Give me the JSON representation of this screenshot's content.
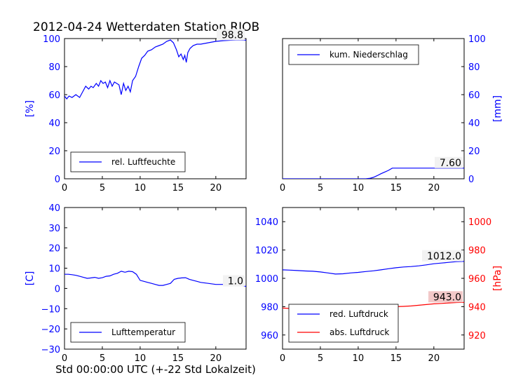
{
  "figure": {
    "title": "2012-04-24 Wetterdaten Station RJOB",
    "footer_xlabel": "Std 00:00:00 UTC (+-22 Std Lokalzeit)"
  },
  "colors": {
    "primary": "#0000ff",
    "secondary": "#ff0000",
    "axis": "#000000",
    "annotation_bg": "#f2f2f2",
    "annotation_bg_red": "#f2c8c8"
  },
  "chart_data": [
    {
      "type": "line",
      "panel": "top-left",
      "ylabel": "[%]",
      "xlim": [
        0,
        24
      ],
      "ylim": [
        0,
        100
      ],
      "xticks": [
        0,
        5,
        10,
        15,
        20
      ],
      "yticks": [
        0,
        20,
        40,
        60,
        80,
        100
      ],
      "grid": false,
      "legend_position": "lower-left",
      "series": [
        {
          "name": "rel. Luftfeuchte",
          "color": "#0000ff",
          "x": [
            0,
            0.3,
            0.6,
            1,
            1.5,
            2,
            2.4,
            2.8,
            3.2,
            3.5,
            3.8,
            4.2,
            4.5,
            4.8,
            5.1,
            5.4,
            5.7,
            6,
            6.3,
            6.6,
            6.9,
            7.2,
            7.5,
            7.8,
            8.1,
            8.4,
            8.7,
            9,
            9.4,
            9.8,
            10.2,
            10.6,
            11,
            11.5,
            12,
            12.5,
            13,
            13.5,
            14,
            14.4,
            14.8,
            15.1,
            15.4,
            15.7,
            15.9,
            16.1,
            16.3,
            16.6,
            17,
            17.5,
            18,
            19,
            20,
            21,
            22,
            23,
            24
          ],
          "y": [
            59,
            57,
            59,
            58,
            60,
            58,
            62,
            66,
            64,
            66,
            65,
            68,
            66,
            70,
            68,
            69,
            65,
            70,
            66,
            69,
            68,
            67,
            60,
            68,
            63,
            66,
            62,
            70,
            73,
            80,
            86,
            88,
            91,
            92,
            94,
            95,
            96,
            98,
            99,
            97,
            92,
            87,
            89,
            85,
            88,
            83,
            90,
            93,
            95,
            96,
            96,
            97,
            98,
            98.5,
            98.8,
            99,
            98.8
          ]
        }
      ],
      "annotation": "98.8"
    },
    {
      "type": "line",
      "panel": "top-right",
      "ylabel": "[mm]",
      "yaxis_side": "right",
      "xlim": [
        0,
        24
      ],
      "ylim": [
        0,
        100
      ],
      "xticks": [
        0,
        5,
        10,
        15,
        20
      ],
      "yticks": [
        0,
        20,
        40,
        60,
        80,
        100
      ],
      "grid": false,
      "legend_position": "upper-left",
      "series": [
        {
          "name": "kum. Niederschlag",
          "color": "#0000ff",
          "x": [
            0,
            10,
            11,
            11.5,
            12,
            12.5,
            13,
            13.5,
            14,
            14.5,
            15,
            16,
            18,
            20,
            22,
            24
          ],
          "y": [
            0,
            0,
            0,
            0.3,
            1,
            2.2,
            3.6,
            4.8,
            6,
            7.6,
            7.6,
            7.6,
            7.6,
            7.6,
            7.6,
            7.6
          ]
        }
      ],
      "annotation": "7.60"
    },
    {
      "type": "line",
      "panel": "bottom-left",
      "ylabel": "[C]",
      "xlim": [
        0,
        24
      ],
      "ylim": [
        -30,
        40
      ],
      "xticks": [
        0,
        5,
        10,
        15,
        20
      ],
      "yticks": [
        -30,
        -20,
        -10,
        0,
        10,
        20,
        30,
        40
      ],
      "grid": false,
      "legend_position": "lower-left",
      "series": [
        {
          "name": "Lufttemperatur",
          "color": "#0000ff",
          "x": [
            0,
            0.5,
            1,
            1.5,
            2,
            2.5,
            3,
            3.5,
            4,
            4.5,
            5,
            5.5,
            6,
            6.5,
            7,
            7.5,
            8,
            8.5,
            9,
            9.5,
            10,
            10.5,
            11,
            11.5,
            12,
            12.5,
            13,
            13.5,
            14,
            14.5,
            15,
            15.5,
            16,
            16.5,
            17,
            17.5,
            18,
            19,
            20,
            21,
            22,
            23,
            24
          ],
          "y": [
            7,
            7,
            6.8,
            6.5,
            6,
            5.5,
            5,
            5.2,
            5.5,
            5,
            5.3,
            6,
            6.2,
            7,
            7.5,
            8.5,
            8,
            8.5,
            8.3,
            7,
            4,
            3.5,
            3,
            2.5,
            2,
            1.5,
            1.5,
            2,
            2.5,
            4.5,
            5,
            5.2,
            5.3,
            4.5,
            4,
            3.5,
            3,
            2.5,
            2,
            2,
            2,
            1.5,
            1.0
          ]
        }
      ],
      "annotation": "1.0"
    },
    {
      "type": "line",
      "panel": "bottom-right",
      "ylabel": "[hPa]",
      "xlim": [
        0,
        24
      ],
      "ylim_left": [
        950,
        1050
      ],
      "ylim_right": [
        910,
        1010
      ],
      "xticks": [
        0,
        5,
        10,
        15,
        20
      ],
      "yticks_left": [
        960,
        980,
        1000,
        1020,
        1040
      ],
      "yticks_right": [
        920,
        940,
        960,
        980,
        1000
      ],
      "grid": false,
      "legend_position": "lower-left",
      "series": [
        {
          "name": "red. Luftdruck",
          "color": "#0000ff",
          "axis": "left",
          "x": [
            0,
            1,
            2,
            3,
            4,
            5,
            6,
            7,
            8,
            9,
            10,
            11,
            12,
            13,
            14,
            15,
            16,
            17,
            18,
            19,
            20,
            21,
            22,
            23,
            24
          ],
          "y": [
            1006,
            1005.8,
            1005.5,
            1005.2,
            1005,
            1004.5,
            1003.8,
            1003,
            1003.2,
            1003.8,
            1004.2,
            1004.8,
            1005.3,
            1006,
            1006.8,
            1007.5,
            1008,
            1008.3,
            1008.8,
            1009.5,
            1010.3,
            1010.8,
            1011.3,
            1011.8,
            1012.0
          ]
        },
        {
          "name": "abs. Luftdruck",
          "color": "#ff0000",
          "axis": "right",
          "x": [
            0,
            1,
            2,
            3,
            4,
            5,
            6,
            7,
            8,
            9,
            10,
            11,
            12,
            13,
            14,
            15,
            16,
            17,
            18,
            19,
            20,
            21,
            22,
            23,
            24
          ],
          "y": [
            939,
            938.7,
            938.4,
            938,
            937.5,
            937,
            936.5,
            936.3,
            936.5,
            936.8,
            937.3,
            937.8,
            938.3,
            938.8,
            939.3,
            940,
            940.2,
            940.5,
            941,
            941.5,
            942,
            942.3,
            942.6,
            942.9,
            943.0
          ]
        }
      ],
      "annotation_left": "1012.0",
      "annotation_right": "943.0"
    }
  ]
}
